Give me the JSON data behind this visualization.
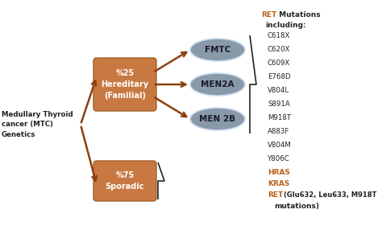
{
  "bg_color": "#ffffff",
  "left_label": "Medullary Thyroid\ncancer (MTC)\nGenetics",
  "box_hereditary_text": "%25\nHereditary\n(Familial)",
  "box_sporadic_text": "%75\nSporadic",
  "box_color": "#c87941",
  "ellipse_color_face": "#8899aa",
  "ellipse_color_edge": "#aabbcc",
  "orange_color": "#b8621a",
  "dark_color": "#222222",
  "arrow_color": "#8b4010",
  "ret_mutations_list": [
    "C618X",
    "C620X",
    "C609X",
    "E768D",
    "V804L",
    "S891A",
    "M918T",
    "A883F",
    "V804M",
    "Y806C"
  ],
  "figsize": [
    4.74,
    2.86
  ],
  "dpi": 100
}
